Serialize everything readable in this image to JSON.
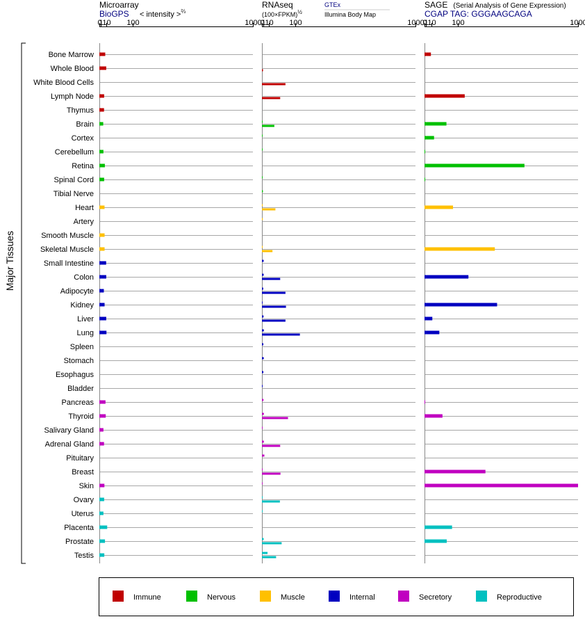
{
  "chart_data": {
    "type": "bar",
    "scale": "power 2/3 (intensity^2/3, tick labels 0 1 10 100 1000)",
    "y_group_label": "Major Tissues",
    "tissues": [
      "Bone Marrow",
      "Whole Blood",
      "White Blood Cells",
      "Lymph Node",
      "Thymus",
      "Brain",
      "Cortex",
      "Cerebellum",
      "Retina",
      "Spinal Cord",
      "Tibial Nerve",
      "Heart",
      "Artery",
      "Smooth Muscle",
      "Skeletal Muscle",
      "Small Intestine",
      "Colon",
      "Adipocyte",
      "Kidney",
      "Liver",
      "Lung",
      "Spleen",
      "Stomach",
      "Esophagus",
      "Bladder",
      "Pancreas",
      "Thyroid",
      "Salivary Gland",
      "Adrenal Gland",
      "Pituitary",
      "Breast",
      "Skin",
      "Ovary",
      "Uterus",
      "Placenta",
      "Prostate",
      "Testis"
    ],
    "groups": [
      "Immune",
      "Immune",
      "Immune",
      "Immune",
      "Immune",
      "Nervous",
      "Nervous",
      "Nervous",
      "Nervous",
      "Nervous",
      "Nervous",
      "Muscle",
      "Muscle",
      "Muscle",
      "Muscle",
      "Internal",
      "Internal",
      "Internal",
      "Internal",
      "Internal",
      "Internal",
      "Internal",
      "Internal",
      "Internal",
      "Internal",
      "Secretory",
      "Secretory",
      "Secretory",
      "Secretory",
      "Secretory",
      "Secretory",
      "Secretory",
      "Reproductive",
      "Reproductive",
      "Reproductive",
      "Reproductive",
      "Reproductive"
    ],
    "group_colors": {
      "Immune": "#c00000",
      "Nervous": "#00c000",
      "Muscle": "#ffc000",
      "Internal": "#0000c0",
      "Secretory": "#c000c0",
      "Reproductive": "#00c0c0"
    },
    "panels": [
      {
        "title": "Microarray",
        "subtitle": "BioGPS",
        "note": "< intensity >",
        "note_exp": "⅔",
        "ticks": [
          "0",
          "1",
          "10",
          "100",
          "1000"
        ],
        "series": [
          {
            "values": [
              7.5,
              9.5,
              null,
              5.5,
              5.3,
              4.0,
              null,
              4.3,
              6.8,
              5.5,
              null,
              6.2,
              null,
              6.3,
              6.3,
              9.3,
              9.5,
              5.0,
              6.3,
              9.5,
              10.0,
              null,
              null,
              null,
              null,
              8.0,
              8.5,
              4.3,
              5.3,
              null,
              null,
              6.0,
              5.5,
              4.3,
              11.5,
              7.0,
              5.8
            ]
          }
        ]
      },
      {
        "title": "RNAseq",
        "subtitle": "(100×FPKM)",
        "subtitle_exp": "½",
        "legend_top": "GTEx",
        "legend_bottom": "Illumina Body Map",
        "ticks": [
          "0",
          "1",
          "10",
          "100",
          "1000"
        ],
        "series": [
          {
            "name": "GTEx",
            "values": [
              null,
              null,
              null,
              null,
              null,
              0.3,
              0.02,
              0.02,
              null,
              0.02,
              0.5,
              0.02,
              0.4,
              null,
              0.02,
              1.2,
              1.2,
              0.8,
              0.02,
              1.1,
              1.4,
              0.9,
              1.3,
              0.9,
              0.02,
              1.0,
              1.4,
              0.02,
              1.4,
              2.0,
              0.02,
              0.02,
              0.02,
              0.02,
              null,
              1.2,
              7.0
            ]
          },
          {
            "name": "Illumina Body Map",
            "values": [
              null,
              0.6,
              60.0,
              41.0,
              null,
              23.0,
              null,
              null,
              null,
              null,
              null,
              26.0,
              null,
              null,
              18.0,
              null,
              41.0,
              60.0,
              62.0,
              60.0,
              123.0,
              null,
              null,
              null,
              null,
              null,
              70.0,
              null,
              41.0,
              null,
              42.0,
              null,
              40.0,
              null,
              null,
              46.0,
              28.0
            ]
          }
        ]
      },
      {
        "title": "SAGE",
        "subtitle_note": "(Serial Analysis of Gene Expression)",
        "subtitle": "CGAP TAG: GGGAAGCAGA",
        "ticks": [
          "0",
          "1",
          "10",
          "100",
          "1000"
        ],
        "series": [
          {
            "values": [
              8.5,
              null,
              null,
              134.0,
              null,
              54.0,
              15.5,
              0.01,
              525.0,
              0.01,
              null,
              80.0,
              null,
              null,
              310.0,
              null,
              153.0,
              null,
              325.0,
              11.5,
              30.0,
              null,
              null,
              null,
              null,
              0.01,
              40.0,
              null,
              null,
              null,
              250.0,
              1000.0,
              null,
              null,
              76.0,
              55.0,
              null
            ]
          }
        ]
      }
    ],
    "legend": [
      {
        "label": "Immune",
        "color": "#c00000"
      },
      {
        "label": "Nervous",
        "color": "#00c000"
      },
      {
        "label": "Muscle",
        "color": "#ffc000"
      },
      {
        "label": "Internal",
        "color": "#0000c0"
      },
      {
        "label": "Secretory",
        "color": "#c000c0"
      },
      {
        "label": "Reproductive",
        "color": "#00c0c0"
      }
    ]
  }
}
